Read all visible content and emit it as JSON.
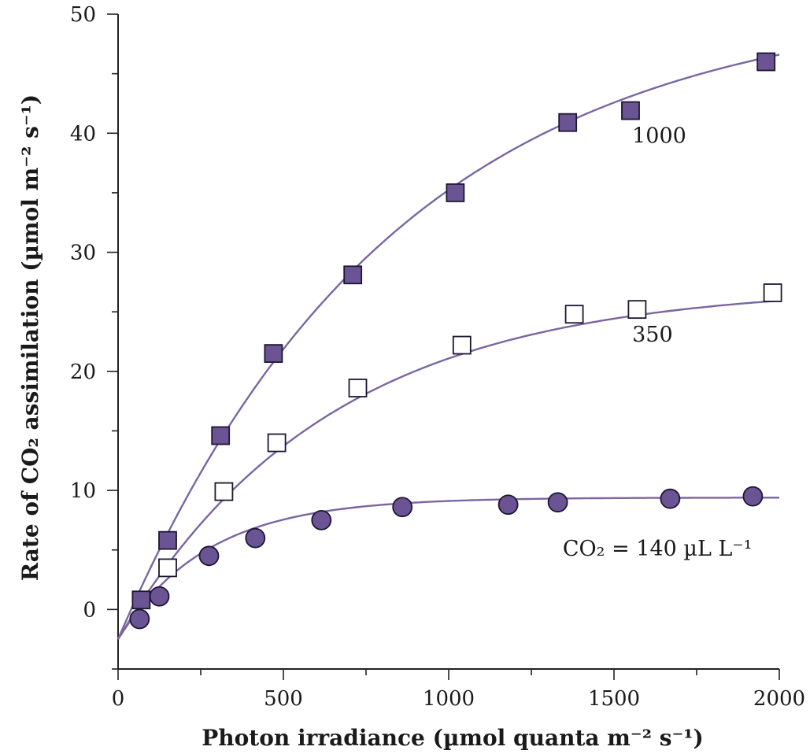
{
  "chart_data": {
    "type": "scatter",
    "title": "",
    "xlabel": "Photon irradiance (µmol quanta m⁻² s⁻¹)",
    "ylabel": "Rate of CO₂ assimilation (µmol m⁻² s⁻¹)",
    "xlim": [
      0,
      2000
    ],
    "ylim": [
      -5,
      50
    ],
    "x_ticks": [
      0,
      500,
      1000,
      1500,
      2000
    ],
    "x_minor_ticks": [
      250,
      750,
      1250,
      1750
    ],
    "y_ticks": [
      0,
      10,
      20,
      30,
      40,
      50
    ],
    "y_minor_ticks": [
      -5,
      5,
      15,
      25,
      35,
      45
    ],
    "x_tick_labels": [
      "0",
      "500",
      "1000",
      "1500",
      "2000"
    ],
    "y_tick_labels": [
      "0",
      "10",
      "20",
      "30",
      "40",
      "50"
    ],
    "grid": false,
    "series": [
      {
        "name": "1000",
        "label": "1000",
        "marker": "square-filled",
        "color": "#6b5494",
        "points": [
          {
            "x": 70,
            "y": 0.8
          },
          {
            "x": 150,
            "y": 5.8
          },
          {
            "x": 310,
            "y": 14.6
          },
          {
            "x": 470,
            "y": 21.5
          },
          {
            "x": 710,
            "y": 28.1
          },
          {
            "x": 1020,
            "y": 35.0
          },
          {
            "x": 1360,
            "y": 40.9
          },
          {
            "x": 1550,
            "y": 41.9
          },
          {
            "x": 1960,
            "y": 46.0
          }
        ],
        "fit": {
          "pmax": 54,
          "k": 0.0012,
          "rd": 2.5
        }
      },
      {
        "name": "350",
        "label": "350",
        "marker": "square-open",
        "color": "#6b5494",
        "points": [
          {
            "x": 150,
            "y": 3.5
          },
          {
            "x": 320,
            "y": 9.9
          },
          {
            "x": 480,
            "y": 14.0
          },
          {
            "x": 725,
            "y": 18.6
          },
          {
            "x": 1040,
            "y": 22.2
          },
          {
            "x": 1380,
            "y": 24.8
          },
          {
            "x": 1570,
            "y": 25.2
          },
          {
            "x": 1980,
            "y": 26.6
          }
        ],
        "fit": {
          "pmax": 29.7,
          "k": 0.00158,
          "rd": 2.5
        }
      },
      {
        "name": "140",
        "label": "CO₂ = 140 µL L⁻¹",
        "marker": "circle-filled",
        "color": "#6b5494",
        "points": [
          {
            "x": 65,
            "y": -0.8
          },
          {
            "x": 125,
            "y": 1.1
          },
          {
            "x": 275,
            "y": 4.5
          },
          {
            "x": 415,
            "y": 6.0
          },
          {
            "x": 615,
            "y": 7.5
          },
          {
            "x": 860,
            "y": 8.6
          },
          {
            "x": 1180,
            "y": 8.8
          },
          {
            "x": 1330,
            "y": 9.0
          },
          {
            "x": 1670,
            "y": 9.3
          },
          {
            "x": 1920,
            "y": 9.5
          }
        ],
        "fit": {
          "pmax": 11.9,
          "k": 0.00372,
          "rd": 2.5
        }
      }
    ],
    "colors": {
      "marker_fill": "#6b5494",
      "curve": "#7a66a3",
      "marker_stroke": "#1c1630",
      "axis": "#222222"
    }
  }
}
